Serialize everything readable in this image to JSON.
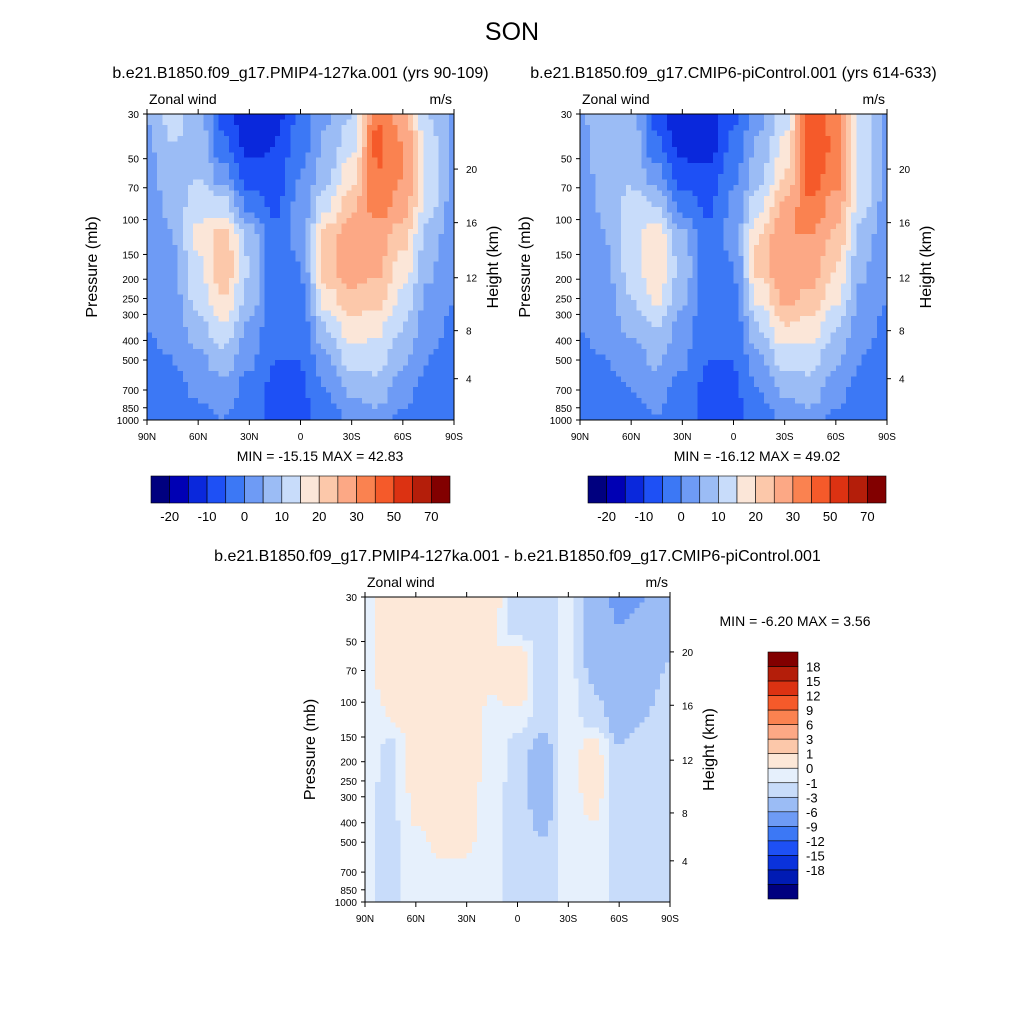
{
  "page": {
    "title": "SON"
  },
  "colors": {
    "main_scale": [
      "#00007f",
      "#0000b4",
      "#0a28dc",
      "#1e50f5",
      "#3c78f5",
      "#6e9bf5",
      "#9bbcf5",
      "#c8dcfa",
      "#fbe6d8",
      "#fcc8aa",
      "#fca885",
      "#fa8250",
      "#f55a2a",
      "#dc3212",
      "#b41e0a",
      "#820000"
    ],
    "diff_scale": [
      "#00007f",
      "#001bb4",
      "#0a32dc",
      "#1e50f5",
      "#3c78f5",
      "#6e9bf5",
      "#9bbcf5",
      "#c8dcfa",
      "#e6f0fc",
      "#fde8d8",
      "#fcc8aa",
      "#fca885",
      "#fa8250",
      "#f55a2a",
      "#dc3212",
      "#b41e0a",
      "#820000"
    ]
  },
  "chart_data": [
    {
      "type": "heatmap",
      "title": "b.e21.B1850.f09_g17.PMIP4-127ka.001 (yrs 90-109)",
      "left_label": "Zonal wind",
      "right_label": "m/s",
      "ylabel": "Pressure (mb)",
      "ylabel_right": "Height (km)",
      "x_ticks": [
        "90N",
        "60N",
        "30N",
        "0",
        "30S",
        "60S",
        "90S"
      ],
      "y_ticks": [
        "30",
        "50",
        "70",
        "100",
        "150",
        "200",
        "250",
        "300",
        "400",
        "500",
        "700",
        "850",
        "1000"
      ],
      "y2_ticks": [
        "20",
        "16",
        "12",
        "8",
        "4"
      ],
      "stats": "MIN = -15.15  MAX =  42.83",
      "colorbar_labels": [
        "-20",
        "-10",
        "0",
        "10",
        "20",
        "30",
        "50",
        "70"
      ]
    },
    {
      "type": "heatmap",
      "title": "b.e21.B1850.f09_g17.CMIP6-piControl.001 (yrs 614-633)",
      "left_label": "Zonal wind",
      "right_label": "m/s",
      "ylabel": "Pressure (mb)",
      "ylabel_right": "Height (km)",
      "x_ticks": [
        "90N",
        "60N",
        "30N",
        "0",
        "30S",
        "60S",
        "90S"
      ],
      "y_ticks": [
        "30",
        "50",
        "70",
        "100",
        "150",
        "200",
        "250",
        "300",
        "400",
        "500",
        "700",
        "850",
        "1000"
      ],
      "y2_ticks": [
        "20",
        "16",
        "12",
        "8",
        "4"
      ],
      "stats": "MIN = -16.12  MAX =  49.02",
      "colorbar_labels": [
        "-20",
        "-10",
        "0",
        "10",
        "20",
        "30",
        "50",
        "70"
      ]
    },
    {
      "type": "heatmap",
      "title": "b.e21.B1850.f09_g17.PMIP4-127ka.001 - b.e21.B1850.f09_g17.CMIP6-piControl.001",
      "left_label": "Zonal wind",
      "right_label": "m/s",
      "ylabel": "Pressure (mb)",
      "ylabel_right": "Height (km)",
      "x_ticks": [
        "90N",
        "60N",
        "30N",
        "0",
        "30S",
        "60S",
        "90S"
      ],
      "y_ticks": [
        "30",
        "50",
        "70",
        "100",
        "150",
        "200",
        "250",
        "300",
        "400",
        "500",
        "700",
        "850",
        "1000"
      ],
      "y2_ticks": [
        "20",
        "16",
        "12",
        "8",
        "4"
      ],
      "stats": "MIN = -6.20  MAX =   3.56",
      "colorbar_labels": [
        "18",
        "15",
        "12",
        "9",
        "6",
        "3",
        "1",
        "0",
        "-1",
        "-3",
        "-6",
        "-9",
        "-12",
        "-15",
        "-18"
      ]
    }
  ]
}
